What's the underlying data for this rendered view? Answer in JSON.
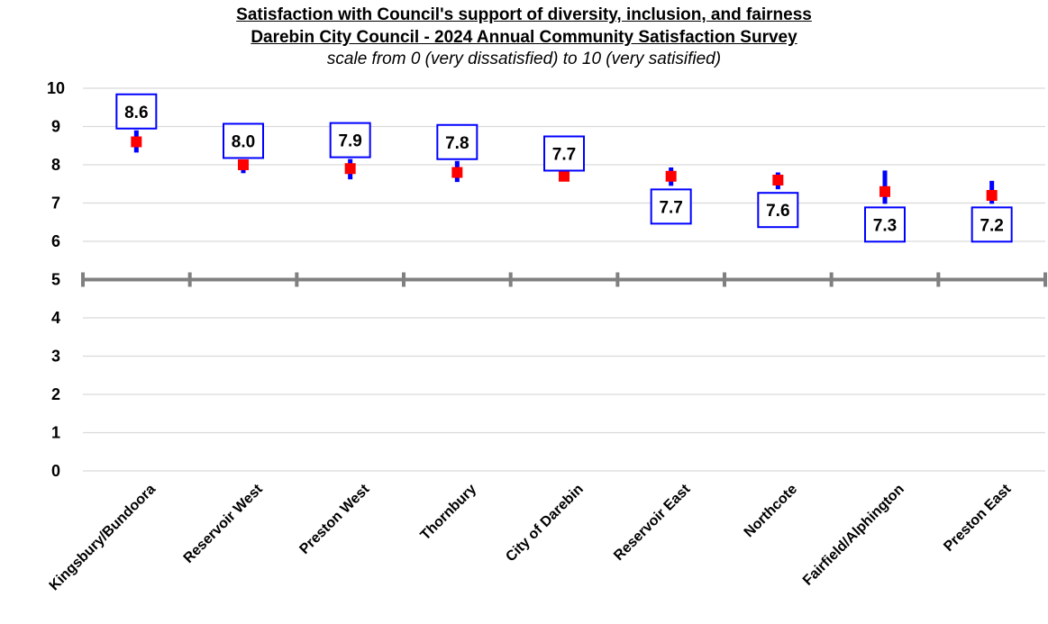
{
  "chart_data": {
    "type": "scatter",
    "title": "Satisfaction with Council's support of diversity, inclusion, and fairness",
    "subtitle_line": "Darebin City Council - 2024 Annual Community Satisfaction Survey",
    "scale_note": "scale from 0 (very dissatisfied) to 10 (very satisified)",
    "ylim": [
      0,
      10
    ],
    "yticks": [
      "0",
      "1",
      "2",
      "3",
      "4",
      "5",
      "6",
      "7",
      "8",
      "9",
      "10"
    ],
    "grid": true,
    "reference_line": 5,
    "categories": [
      "Kingsbury/Bundoora",
      "Reservoir West",
      "Preston West",
      "Thornbury",
      "City of Darebin",
      "Reservoir East",
      "Northcote",
      "Fairfield/Alphington",
      "Preston East"
    ],
    "values": [
      8.6,
      8.0,
      7.9,
      7.8,
      7.7,
      7.7,
      7.6,
      7.3,
      7.2
    ],
    "value_labels": [
      "8.6",
      "8.0",
      "7.9",
      "7.8",
      "7.7",
      "7.7",
      "7.6",
      "7.3",
      "7.2"
    ],
    "ci_low": [
      8.32,
      7.78,
      7.62,
      7.55,
      7.7,
      7.45,
      7.36,
      6.98,
      6.98
    ],
    "ci_high": [
      8.9,
      8.13,
      8.15,
      8.1,
      7.8,
      7.93,
      7.8,
      7.85,
      7.58
    ],
    "label_position": [
      "above",
      "above",
      "above",
      "above",
      "above",
      "below",
      "below",
      "below",
      "below"
    ],
    "colors": {
      "marker": "#ff0000",
      "error_bar": "#0000ff",
      "label_border": "#0000ff",
      "gridline": "#d9d9d9",
      "reference_line": "#808080"
    }
  }
}
